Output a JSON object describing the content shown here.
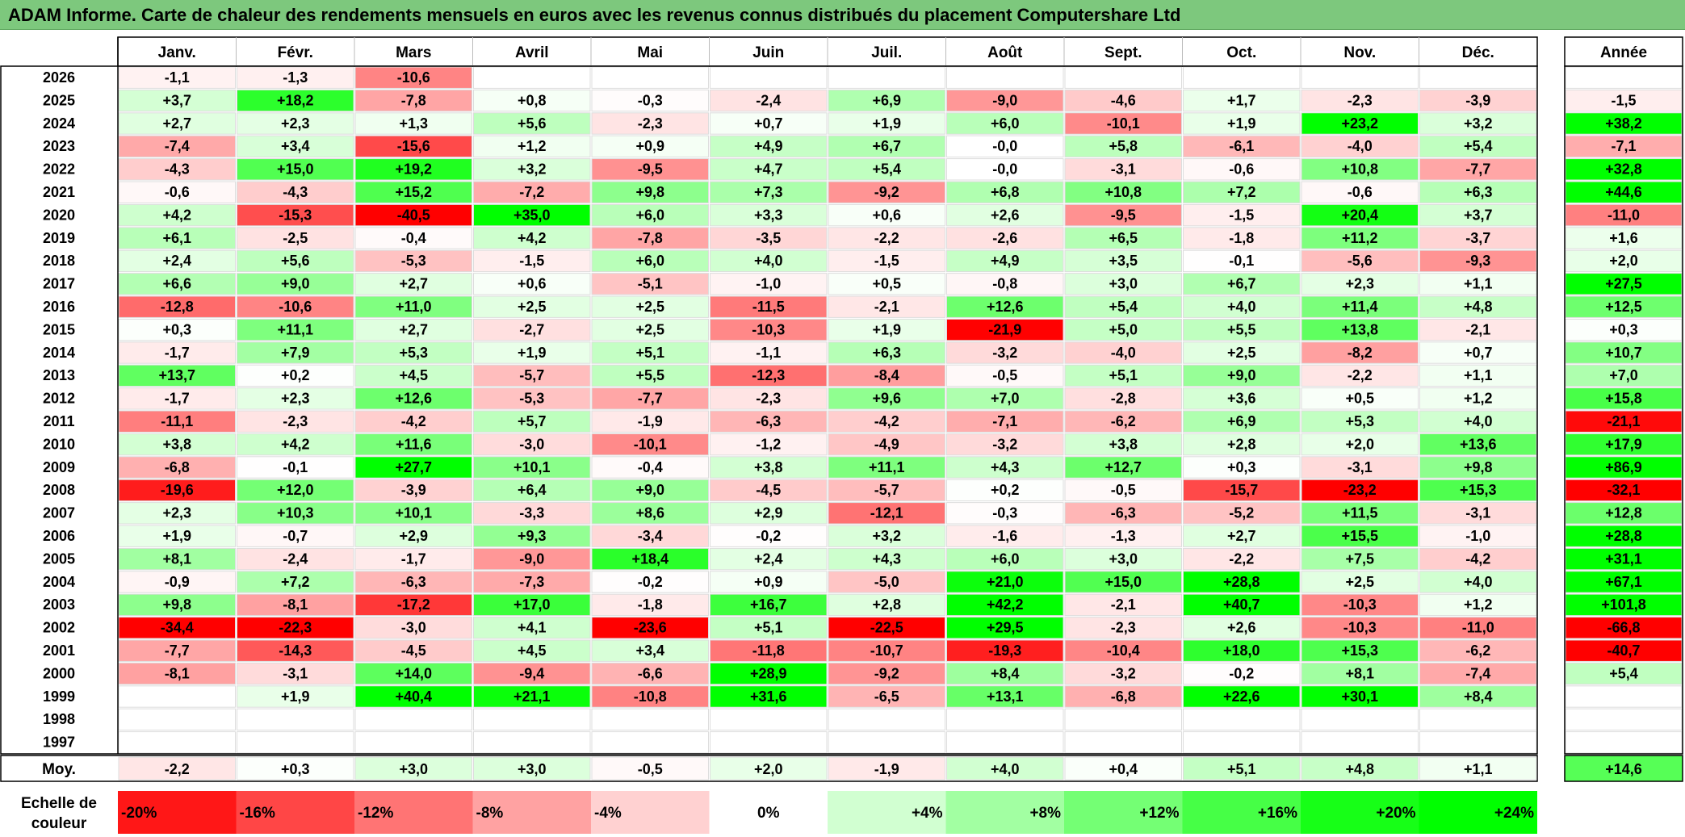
{
  "title": "ADAM Informe. Carte de chaleur des rendements mensuels en euros avec les revenus connus distribués du placement Computershare Ltd",
  "chart_data": {
    "type": "heatmap",
    "months": [
      "Janv.",
      "Févr.",
      "Mars",
      "Avril",
      "Mai",
      "Juin",
      "Juil.",
      "Août",
      "Sept.",
      "Oct.",
      "Nov.",
      "Déc."
    ],
    "year_header": "Année",
    "years": [
      "2026",
      "2025",
      "2024",
      "2023",
      "2022",
      "2021",
      "2020",
      "2019",
      "2018",
      "2017",
      "2016",
      "2015",
      "2014",
      "2013",
      "2012",
      "2011",
      "2010",
      "2009",
      "2008",
      "2007",
      "2006",
      "2005",
      "2004",
      "2003",
      "2002",
      "2001",
      "2000",
      "1999",
      "1998",
      "1997"
    ],
    "values": [
      [
        "-1,1",
        "-1,3",
        "-10,6",
        "",
        "",
        "",
        "",
        "",
        "",
        "",
        "",
        ""
      ],
      [
        "+3,7",
        "+18,2",
        "-7,8",
        "+0,8",
        "-0,3",
        "-2,4",
        "+6,9",
        "-9,0",
        "-4,6",
        "+1,7",
        "-2,3",
        "-3,9"
      ],
      [
        "+2,7",
        "+2,3",
        "+1,3",
        "+5,6",
        "-2,3",
        "+0,7",
        "+1,9",
        "+6,0",
        "-10,1",
        "+1,9",
        "+23,2",
        "+3,2"
      ],
      [
        "-7,4",
        "+3,4",
        "-15,6",
        "+1,2",
        "+0,9",
        "+4,9",
        "+6,7",
        "-0,0",
        "+5,8",
        "-6,1",
        "-4,0",
        "+5,4"
      ],
      [
        "-4,3",
        "+15,0",
        "+19,2",
        "+3,2",
        "-9,5",
        "+4,7",
        "+5,4",
        "-0,0",
        "-3,1",
        "-0,6",
        "+10,8",
        "-7,7"
      ],
      [
        "-0,6",
        "-4,3",
        "+15,2",
        "-7,2",
        "+9,8",
        "+7,3",
        "-9,2",
        "+6,8",
        "+10,8",
        "+7,2",
        "-0,6",
        "+6,3"
      ],
      [
        "+4,2",
        "-15,3",
        "-40,5",
        "+35,0",
        "+6,0",
        "+3,3",
        "+0,6",
        "+2,6",
        "-9,5",
        "-1,5",
        "+20,4",
        "+3,7"
      ],
      [
        "+6,1",
        "-2,5",
        "-0,4",
        "+4,2",
        "-7,8",
        "-3,5",
        "-2,2",
        "-2,6",
        "+6,5",
        "-1,8",
        "+11,2",
        "-3,7"
      ],
      [
        "+2,4",
        "+5,6",
        "-5,3",
        "-1,5",
        "+6,0",
        "+4,0",
        "-1,5",
        "+4,9",
        "+3,5",
        "-0,1",
        "-5,6",
        "-9,3"
      ],
      [
        "+6,6",
        "+9,0",
        "+2,7",
        "+0,6",
        "-5,1",
        "-1,0",
        "+0,5",
        "-0,8",
        "+3,0",
        "+6,7",
        "+2,3",
        "+1,1"
      ],
      [
        "-12,8",
        "-10,6",
        "+11,0",
        "+2,5",
        "+2,5",
        "-11,5",
        "-2,1",
        "+12,6",
        "+5,4",
        "+4,0",
        "+11,4",
        "+4,8"
      ],
      [
        "+0,3",
        "+11,1",
        "+2,7",
        "-2,7",
        "+2,5",
        "-10,3",
        "+1,9",
        "-21,9",
        "+5,0",
        "+5,5",
        "+13,8",
        "-2,1"
      ],
      [
        "-1,7",
        "+7,9",
        "+5,3",
        "+1,9",
        "+5,1",
        "-1,1",
        "+6,3",
        "-3,2",
        "-4,0",
        "+2,5",
        "-8,2",
        "+0,7"
      ],
      [
        "+13,7",
        "+0,2",
        "+4,5",
        "-5,7",
        "+5,5",
        "-12,3",
        "-8,4",
        "-0,5",
        "+5,1",
        "+9,0",
        "-2,2",
        "+1,1"
      ],
      [
        "-1,7",
        "+2,3",
        "+12,6",
        "-5,3",
        "-7,7",
        "-2,3",
        "+9,6",
        "+7,0",
        "-2,8",
        "+3,6",
        "+0,5",
        "+1,2"
      ],
      [
        "-11,1",
        "-2,3",
        "-4,2",
        "+5,7",
        "-1,9",
        "-6,3",
        "-4,2",
        "-7,1",
        "-6,2",
        "+6,9",
        "+5,3",
        "+4,0"
      ],
      [
        "+3,8",
        "+4,2",
        "+11,6",
        "-3,0",
        "-10,1",
        "-1,2",
        "-4,9",
        "-3,2",
        "+3,8",
        "+2,8",
        "+2,0",
        "+13,6"
      ],
      [
        "-6,8",
        "-0,1",
        "+27,7",
        "+10,1",
        "-0,4",
        "+3,8",
        "+11,1",
        "+4,3",
        "+12,7",
        "+0,3",
        "-3,1",
        "+9,8"
      ],
      [
        "-19,6",
        "+12,0",
        "-3,9",
        "+6,4",
        "+9,0",
        "-4,5",
        "-5,7",
        "+0,2",
        "-0,5",
        "-15,7",
        "-23,2",
        "+15,3"
      ],
      [
        "+2,3",
        "+10,3",
        "+10,1",
        "-3,3",
        "+8,6",
        "+2,9",
        "-12,1",
        "-0,3",
        "-6,3",
        "-5,2",
        "+11,5",
        "-3,1"
      ],
      [
        "+1,9",
        "-0,7",
        "+2,9",
        "+9,3",
        "-3,4",
        "-0,2",
        "+3,2",
        "-1,6",
        "-1,3",
        "+2,7",
        "+15,5",
        "-1,0"
      ],
      [
        "+8,1",
        "-2,4",
        "-1,7",
        "-9,0",
        "+18,4",
        "+2,4",
        "+4,3",
        "+6,0",
        "+3,0",
        "-2,2",
        "+7,5",
        "-4,2"
      ],
      [
        "-0,9",
        "+7,2",
        "-6,3",
        "-7,3",
        "-0,2",
        "+0,9",
        "-5,0",
        "+21,0",
        "+15,0",
        "+28,8",
        "+2,5",
        "+4,0"
      ],
      [
        "+9,8",
        "-8,1",
        "-17,2",
        "+17,0",
        "-1,8",
        "+16,7",
        "+2,8",
        "+42,2",
        "-2,1",
        "+40,7",
        "-10,3",
        "+1,2"
      ],
      [
        "-34,4",
        "-22,3",
        "-3,0",
        "+4,1",
        "-23,6",
        "+5,1",
        "-22,5",
        "+29,5",
        "-2,3",
        "+2,6",
        "-10,3",
        "-11,0"
      ],
      [
        "-7,7",
        "-14,3",
        "-4,5",
        "+4,5",
        "+3,4",
        "-11,8",
        "-10,7",
        "-19,3",
        "-10,4",
        "+18,0",
        "+15,3",
        "-6,2"
      ],
      [
        "-8,1",
        "-3,1",
        "+14,0",
        "-9,4",
        "-6,6",
        "+28,9",
        "-9,2",
        "+8,4",
        "-3,2",
        "-0,2",
        "+8,1",
        "-7,4"
      ],
      [
        "",
        "+1,9",
        "+40,4",
        "+21,1",
        "-10,8",
        "+31,6",
        "-6,5",
        "+13,1",
        "-6,8",
        "+22,6",
        "+30,1",
        "+8,4"
      ],
      [
        "",
        "",
        "",
        "",
        "",
        "",
        "",
        "",
        "",
        "",
        "",
        ""
      ],
      [
        "",
        "",
        "",
        "",
        "",
        "",
        "",
        "",
        "",
        "",
        "",
        ""
      ]
    ],
    "annual": [
      "",
      "-1,5",
      "+38,2",
      "-7,1",
      "+32,8",
      "+44,6",
      "-11,0",
      "+1,6",
      "+2,0",
      "+27,5",
      "+12,5",
      "+0,3",
      "+10,7",
      "+7,0",
      "+15,8",
      "-21,1",
      "+17,9",
      "+86,9",
      "-32,1",
      "+12,8",
      "+28,8",
      "+31,1",
      "+67,1",
      "+101,8",
      "-66,8",
      "-40,7",
      "+5,4",
      "",
      "",
      ""
    ],
    "average_label": "Moy.",
    "averages": [
      "-2,2",
      "+0,3",
      "+3,0",
      "+3,0",
      "-0,5",
      "+2,0",
      "-1,9",
      "+4,0",
      "+0,4",
      "+5,1",
      "+4,8",
      "+1,1"
    ],
    "average_annual": "+14,6",
    "scale_label": [
      "Echelle de",
      "couleur"
    ],
    "scale": [
      {
        "label": "-20%",
        "value": -20
      },
      {
        "label": "-16%",
        "value": -16
      },
      {
        "label": "-12%",
        "value": -12
      },
      {
        "label": "-8%",
        "value": -8
      },
      {
        "label": "-4%",
        "value": -4
      },
      {
        "label": "0%",
        "value": 0
      },
      {
        "label": "+4%",
        "value": 4
      },
      {
        "label": "+8%",
        "value": 8
      },
      {
        "label": "+12%",
        "value": 12
      },
      {
        "label": "+16%",
        "value": 16
      },
      {
        "label": "+20%",
        "value": 20
      },
      {
        "label": "+24%",
        "value": 24
      }
    ],
    "colors": {
      "positive_max": "#00ff00",
      "negative_max": "#ff0000",
      "neutral": "#ffffff",
      "title_bar": "#7dc87d"
    }
  }
}
